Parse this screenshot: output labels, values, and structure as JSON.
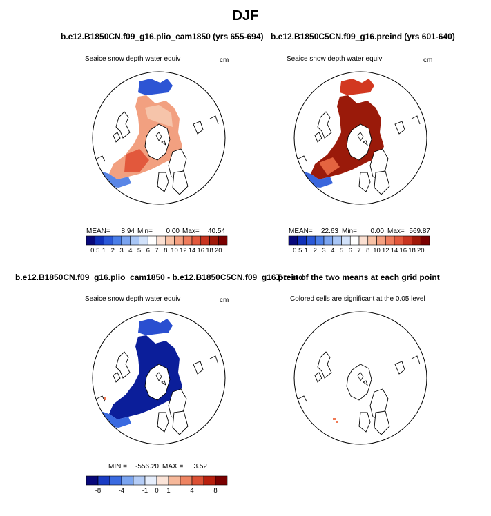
{
  "title": "DJF",
  "colors": {
    "diff_dark": "#0b1e9a",
    "diff_mid": "#2a4fd0",
    "land_line": "#000000",
    "sig": "#f07a55"
  },
  "panels": [
    {
      "id": "plio",
      "run_title": "b.e12.B1850CN.f09_g16.plio_cam1850 (yrs 655-694)",
      "variable": "Seaice snow depth water equiv",
      "units": "cm",
      "stats": {
        "mean_label": "MEAN=",
        "mean": "8.94",
        "min_label": "Min=",
        "min": "0.00",
        "max_label": "Max=",
        "max": "40.54"
      }
    },
    {
      "id": "preind",
      "run_title": "b.e12.B1850C5CN.f09_g16.preind (yrs 601-640)",
      "variable": "Seaice snow depth water equiv",
      "units": "cm",
      "stats": {
        "mean_label": "MEAN=",
        "mean": "22.63",
        "min_label": "Min=",
        "min": "0.00",
        "max_label": "Max=",
        "max": "569.87"
      }
    },
    {
      "id": "diff",
      "run_title": "b.e12.B1850CN.f09_g16.plio_cam1850 - b.e12.B1850C5CN.f09_g16.preind",
      "variable": "Seaice snow depth water equiv",
      "units": "cm",
      "stats": {
        "min_label": "MIN =",
        "min": "-556.20",
        "max_label": "MAX =",
        "max": "3.52"
      }
    },
    {
      "id": "ttest",
      "run_title": "T-test of the two means at each grid point",
      "variable": "Colored cells are significant at the 0.05 level",
      "units": ""
    }
  ],
  "chart_data": [
    {
      "type": "heatmap",
      "title": "b.e12.B1850CN.f09_g16.plio_cam1850 (yrs 655-694)",
      "projection": "north polar stereographic",
      "variable": "Seaice snow depth water equiv",
      "units": "cm",
      "colorbar_levels": [
        "0.5",
        "1",
        "2",
        "3",
        "4",
        "5",
        "6",
        "7",
        "8",
        "10",
        "12",
        "14",
        "16",
        "18",
        "20"
      ],
      "colorbar_colors": [
        "#08087a",
        "#1030b8",
        "#2a58d8",
        "#4a7ee8",
        "#7aa4f0",
        "#a8c6f6",
        "#d2e2fa",
        "#ffffff",
        "#fbe0d2",
        "#f8c2a6",
        "#f4a080",
        "#ee7c5c",
        "#e2583c",
        "#c83420",
        "#a01808",
        "#7a0000"
      ],
      "mean": 8.94,
      "min": 0.0,
      "max": 40.54
    },
    {
      "type": "heatmap",
      "title": "b.e12.B1850C5CN.f09_g16.preind (yrs 601-640)",
      "projection": "north polar stereographic",
      "variable": "Seaice snow depth water equiv",
      "units": "cm",
      "colorbar_levels": [
        "0.5",
        "1",
        "2",
        "3",
        "4",
        "5",
        "6",
        "7",
        "8",
        "10",
        "12",
        "14",
        "16",
        "18",
        "20"
      ],
      "colorbar_colors": [
        "#08087a",
        "#1030b8",
        "#2a58d8",
        "#4a7ee8",
        "#7aa4f0",
        "#a8c6f6",
        "#d2e2fa",
        "#ffffff",
        "#fbe0d2",
        "#f8c2a6",
        "#f4a080",
        "#ee7c5c",
        "#e2583c",
        "#c83420",
        "#a01808",
        "#7a0000"
      ],
      "mean": 22.63,
      "min": 0.0,
      "max": 569.87
    },
    {
      "type": "heatmap",
      "title": "b.e12.B1850CN.f09_g16.plio_cam1850 - b.e12.B1850C5CN.f09_g16.preind",
      "projection": "north polar stereographic",
      "variable": "Seaice snow depth water equiv",
      "units": "cm",
      "colorbar_levels": [
        "-8",
        "-4",
        "-1",
        "0",
        "1",
        "4",
        "8"
      ],
      "colorbar_colors": [
        "#08087a",
        "#1a3cc4",
        "#3a6ae0",
        "#7aa4f0",
        "#b4ccf6",
        "#e6eefc",
        "#fbe4d8",
        "#f6b89a",
        "#ee8462",
        "#dc5034",
        "#b8200e",
        "#7a0000"
      ],
      "min": -556.2,
      "max": 3.52
    },
    {
      "type": "heatmap",
      "title": "T-test of the two means at each grid point",
      "projection": "north polar stereographic",
      "variable": "Colored cells are significant at the 0.05 level",
      "units": ""
    }
  ]
}
